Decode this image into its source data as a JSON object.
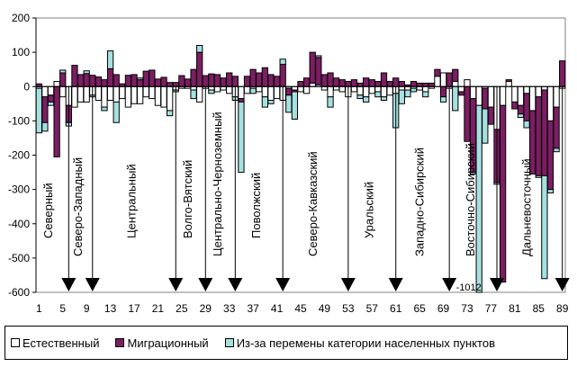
{
  "chart_data": {
    "type": "bar",
    "stacked": true,
    "title": "",
    "xlabel": "",
    "ylabel": "",
    "ylim": [
      -600,
      200
    ],
    "yticks": [
      200,
      100,
      0,
      -100,
      -200,
      -300,
      -400,
      -500,
      -600
    ],
    "xticks": [
      1,
      5,
      9,
      13,
      17,
      21,
      25,
      29,
      33,
      37,
      41,
      45,
      49,
      53,
      57,
      61,
      65,
      69,
      73,
      77,
      81,
      85,
      89
    ],
    "grid": false,
    "legend_position": "bottom",
    "series": [
      {
        "name": "Естественный",
        "color": "#ffffff",
        "values": [
          -5,
          -30,
          -25,
          15,
          -30,
          -55,
          -60,
          -45,
          -45,
          -25,
          -40,
          -60,
          -40,
          -45,
          -35,
          -60,
          -50,
          -50,
          -30,
          -35,
          -55,
          -60,
          -70,
          -10,
          -5,
          -5,
          -10,
          -45,
          -5,
          -10,
          -15,
          -10,
          -20,
          -30,
          -35,
          -20,
          -5,
          -15,
          -30,
          -40,
          -35,
          -40,
          -5,
          -10,
          -15,
          -20,
          10,
          5,
          -10,
          -30,
          -10,
          -15,
          -30,
          -15,
          -25,
          -30,
          -20,
          -15,
          -30,
          -25,
          -20,
          -10,
          -10,
          -5,
          -10,
          -15,
          -5,
          30,
          40,
          -5,
          15,
          -15,
          20,
          -35,
          -55,
          -5,
          -60,
          -125,
          -55,
          15,
          -45,
          -55,
          -20,
          -70,
          -30,
          -10,
          -100,
          -60,
          -5
        ]
      },
      {
        "name": "Миграционный",
        "color": "#7b1e62",
        "values": [
          8,
          -75,
          -20,
          -205,
          40,
          -50,
          62,
          35,
          38,
          33,
          28,
          20,
          52,
          35,
          8,
          33,
          35,
          20,
          45,
          48,
          22,
          27,
          12,
          12,
          32,
          22,
          50,
          100,
          32,
          37,
          35,
          25,
          40,
          30,
          -10,
          30,
          50,
          40,
          55,
          35,
          30,
          65,
          -20,
          -5,
          15,
          25,
          90,
          80,
          35,
          40,
          25,
          20,
          15,
          20,
          10,
          25,
          20,
          15,
          40,
          15,
          25,
          15,
          5,
          15,
          10,
          10,
          10,
          20,
          -30,
          40,
          35,
          -10,
          -160,
          -215,
          0,
          -60,
          -50,
          -155,
          -515,
          5,
          -20,
          -25,
          -80,
          -185,
          -230,
          -250,
          -200,
          -120,
          75
        ]
      },
      {
        "name": "Из-за перемены категории населенных пунктов",
        "color": "#a6e0e0",
        "values": [
          -130,
          -25,
          -10,
          0,
          8,
          -10,
          0,
          0,
          8,
          -5,
          0,
          -10,
          52,
          -60,
          0,
          0,
          0,
          5,
          0,
          0,
          0,
          0,
          -15,
          -5,
          0,
          0,
          -25,
          20,
          0,
          -10,
          0,
          0,
          0,
          -10,
          -205,
          0,
          -15,
          0,
          -30,
          -10,
          0,
          15,
          -50,
          -80,
          0,
          0,
          0,
          5,
          0,
          -30,
          0,
          0,
          0,
          0,
          -10,
          -15,
          0,
          -15,
          -10,
          0,
          -100,
          -40,
          -20,
          -10,
          0,
          -15,
          0,
          0,
          -15,
          0,
          -70,
          0,
          0,
          -5,
          -1012,
          -100,
          0,
          -5,
          0,
          0,
          0,
          -10,
          -20,
          0,
          -5,
          -300,
          -10,
          -10,
          0
        ]
      }
    ],
    "region_labels": [
      {
        "label": "Северный",
        "arrow_at": 6
      },
      {
        "label": "Северо-Западный",
        "arrow_at": 10
      },
      {
        "label": "Центральный",
        "arrow_at": 24
      },
      {
        "label": "Волго-Вятский",
        "arrow_at": 29
      },
      {
        "label": "Центрально-Черноземный",
        "arrow_at": 34
      },
      {
        "label": "Поволжский",
        "arrow_at": 42
      },
      {
        "label": "Северо-Кавказский",
        "arrow_at": 53
      },
      {
        "label": "Уральский",
        "arrow_at": 61
      },
      {
        "label": "Западно-Сибирский",
        "arrow_at": 70
      },
      {
        "label": "Восточно-Сибирский",
        "arrow_at": 78
      },
      {
        "label": "Дальневосточный",
        "arrow_at": 89
      }
    ],
    "annotations": [
      {
        "text": "-1012",
        "x": 76
      }
    ]
  },
  "legend": {
    "items": [
      "Естественный",
      "Миграционный",
      "Из-за перемены категории населенных пунктов"
    ]
  }
}
